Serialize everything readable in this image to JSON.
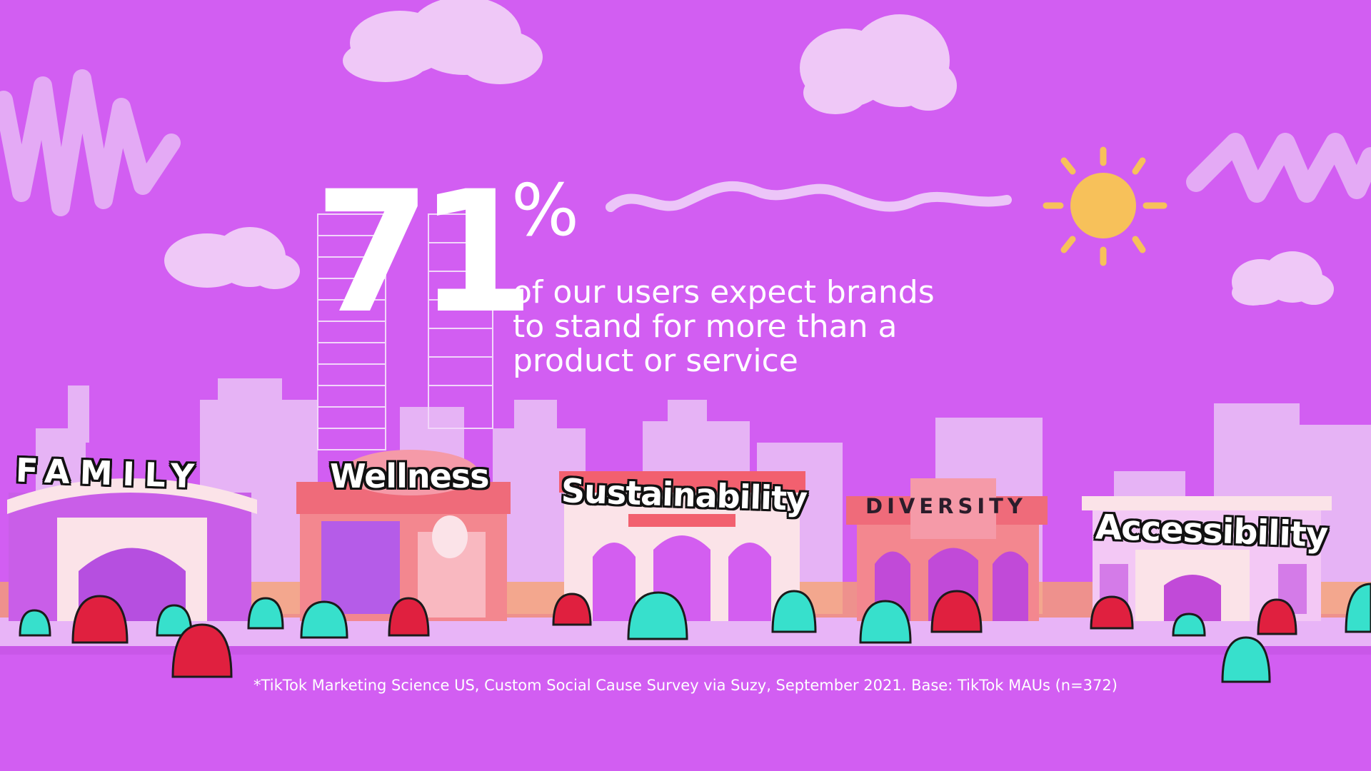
{
  "stat": {
    "number": "71",
    "percent_sign": "%",
    "description_lines": [
      "of our users expect brands",
      "to stand for more than a",
      "product or service"
    ]
  },
  "signs": {
    "family": "FAMILY",
    "wellness": "Wellness",
    "sustainability": "Sustainability",
    "diversity": "DIVERSITY",
    "accessibility": "Accessibility"
  },
  "footnote": "*TikTok Marketing Science US, Custom Social Cause Survey via Suzy, September 2021. Base: TikTok MAUs (n=372)",
  "colors": {
    "background": "#d25ef2",
    "skyline": "#e6b3f5",
    "cloud": "#efc8f7",
    "sun": "#f7c15a",
    "red_blob": "#e0203f",
    "teal_blob": "#37e0cc"
  },
  "icons": [
    "cloud-icon",
    "sun-icon",
    "squiggle-icon",
    "building-icon",
    "blob-character-icon"
  ]
}
